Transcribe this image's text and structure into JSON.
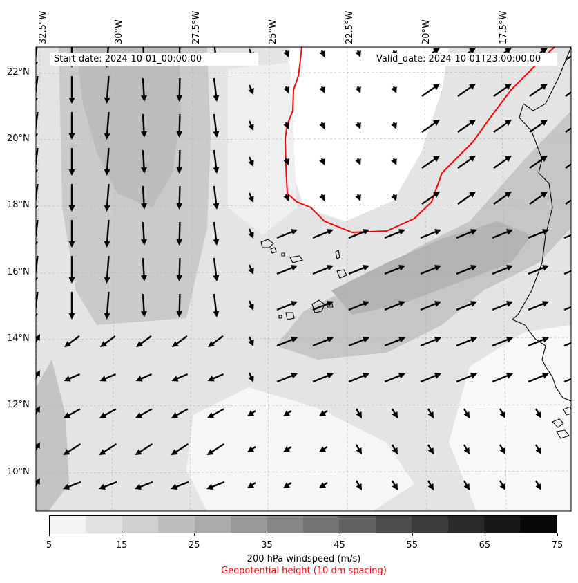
{
  "info": {
    "start_date": "Start date: 2024-10-01_00:00:00",
    "valid_date": "Valid_date: 2024-10-01T23:00:00.00"
  },
  "axes": {
    "lon_labels": [
      "32.5°W",
      "30°W",
      "27.5°W",
      "25°W",
      "22.5°W",
      "20°W",
      "17.5°W"
    ],
    "lat_labels": [
      "22°N",
      "20°N",
      "18°N",
      "16°N",
      "14°N",
      "12°N",
      "10°N"
    ]
  },
  "colorbar": {
    "ticks": [
      "5",
      "15",
      "25",
      "35",
      "45",
      "55",
      "65",
      "75"
    ],
    "colors": [
      "#f4f4f4",
      "#e2e2e2",
      "#d0d0d0",
      "#bdbdbd",
      "#aaaaaa",
      "#999999",
      "#878787",
      "#737373",
      "#616161",
      "#4f4f4f",
      "#3c3c3c",
      "#2a2a2a",
      "#181818",
      "#080808"
    ],
    "label": "200 hPa windspeed (m/s)",
    "sublabel": "Geopotential height (10 dm spacing)"
  },
  "styles": {
    "contour_color": "#ff0000",
    "arrow_color": "#000000",
    "coast_color": "#000000"
  }
}
